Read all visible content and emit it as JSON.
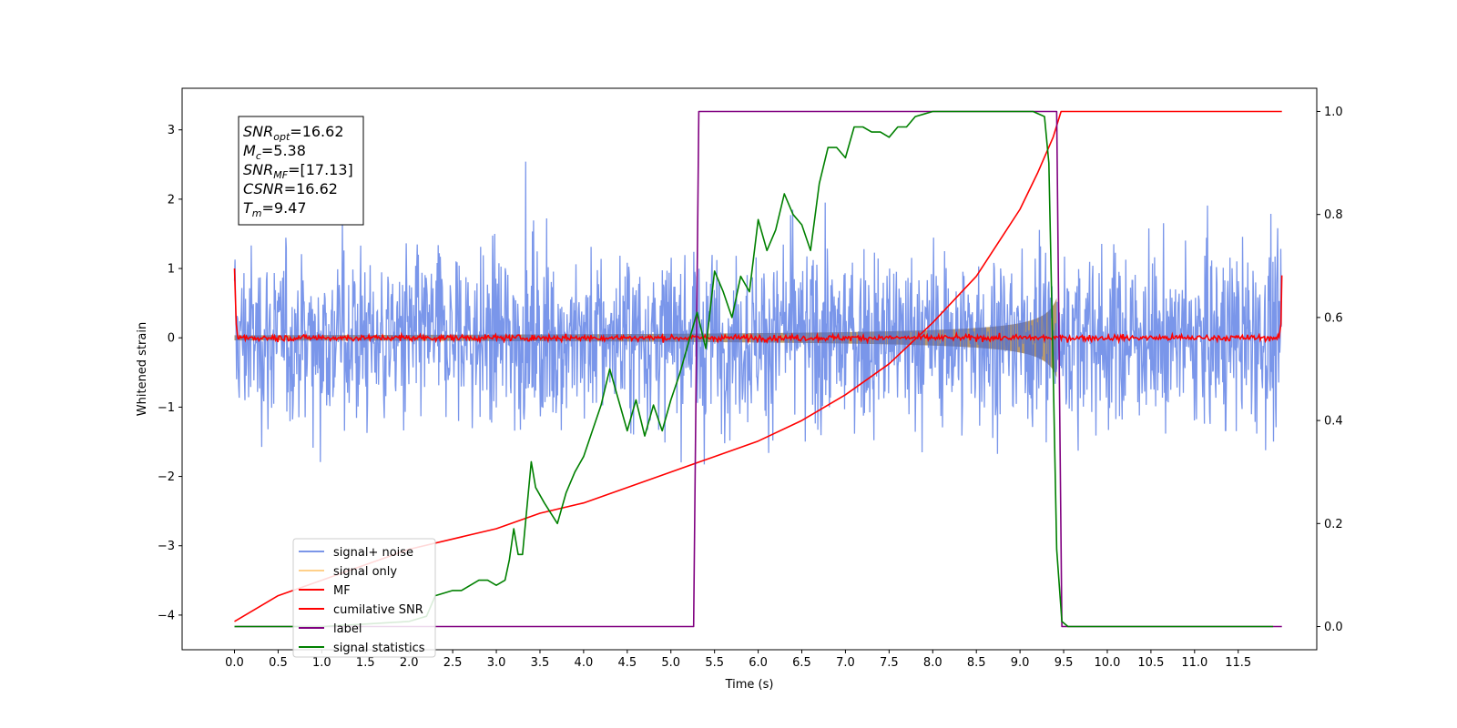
{
  "chart_data": {
    "type": "line",
    "xlabel": "Time (s)",
    "ylabel": "Whitened strain",
    "xlim": [
      -0.6,
      12.4
    ],
    "ylim": [
      -4.5,
      3.6
    ],
    "y2lim": [
      -0.045,
      1.045
    ],
    "x_ticks": [
      "0.0",
      "0.5",
      "1.0",
      "1.5",
      "2.0",
      "2.5",
      "3.0",
      "3.5",
      "4.0",
      "4.5",
      "5.0",
      "5.5",
      "6.0",
      "6.5",
      "7.0",
      "7.5",
      "8.0",
      "8.5",
      "9.0",
      "9.5",
      "10.0",
      "10.5",
      "11.0",
      "11.5"
    ],
    "y_ticks": [
      "3",
      "2",
      "1",
      "0",
      "−1",
      "−2",
      "−3",
      "−4"
    ],
    "y2_ticks": [
      "1.0",
      "0.8",
      "0.6",
      "0.4",
      "0.2",
      "0.0"
    ],
    "grid": false,
    "legend_position": "lower-left",
    "annotation": {
      "lines": [
        {
          "sym": "SNR",
          "sub": "opt",
          "val": "=16.62"
        },
        {
          "sym": "M",
          "sub": "c",
          "val": "=5.38"
        },
        {
          "sym": "SNR",
          "sub": "MF",
          "val": "=[17.13]"
        },
        {
          "sym": "CSNR",
          "sub": "",
          "val": "=16.62"
        },
        {
          "sym": "T",
          "sub": "m",
          "val": "=9.47"
        }
      ]
    },
    "series": [
      {
        "name": "signal+ noise",
        "color": "#4169e1",
        "axis": "left",
        "description": "whitened noise, roughly ±1.5 with excursions to about ±3.3, from 0 to 12 s"
      },
      {
        "name": "signal only",
        "color": "#ffa500",
        "axis": "left",
        "description": "chirp with growing amplitude, about ±0.05 near 0 s up to ±0.75 at 9.4 s, then 0"
      },
      {
        "name": "MF",
        "color": "#ff0000",
        "axis": "left",
        "description": "matched filter output, about 0 ± 0.1, near 1 at both edges"
      },
      {
        "name": "cumilative SNR",
        "color": "#ff0000",
        "axis": "right",
        "x": [
          0.0,
          0.5,
          1.0,
          1.5,
          2.0,
          2.5,
          3.0,
          3.5,
          4.0,
          4.5,
          5.0,
          5.5,
          6.0,
          6.5,
          7.0,
          7.5,
          8.0,
          8.5,
          9.0,
          9.2,
          9.38,
          9.47,
          12.0
        ],
        "y": [
          0.01,
          0.06,
          0.09,
          0.12,
          0.15,
          0.17,
          0.19,
          0.22,
          0.24,
          0.27,
          0.3,
          0.33,
          0.36,
          0.4,
          0.45,
          0.51,
          0.59,
          0.68,
          0.81,
          0.88,
          0.95,
          1.0,
          1.0
        ]
      },
      {
        "name": "label",
        "color": "#800080",
        "axis": "right",
        "x": [
          0.0,
          5.26,
          5.32,
          9.42,
          9.48,
          12.0
        ],
        "y": [
          0.0,
          0.0,
          1.0,
          1.0,
          0.0,
          0.0
        ]
      },
      {
        "name": "signal statistics",
        "color": "#008000",
        "axis": "right",
        "x": [
          0.0,
          1.0,
          2.0,
          2.2,
          2.3,
          2.5,
          2.6,
          2.8,
          2.9,
          3.0,
          3.1,
          3.15,
          3.2,
          3.25,
          3.3,
          3.4,
          3.45,
          3.55,
          3.7,
          3.8,
          3.9,
          4.0,
          4.1,
          4.2,
          4.3,
          4.4,
          4.5,
          4.6,
          4.7,
          4.8,
          4.9,
          5.0,
          5.1,
          5.2,
          5.3,
          5.4,
          5.5,
          5.6,
          5.7,
          5.8,
          5.9,
          6.0,
          6.1,
          6.2,
          6.3,
          6.4,
          6.5,
          6.6,
          6.7,
          6.8,
          6.9,
          7.0,
          7.1,
          7.2,
          7.3,
          7.4,
          7.5,
          7.6,
          7.7,
          7.8,
          8.0,
          8.2,
          8.6,
          8.8,
          9.0,
          9.15,
          9.28,
          9.33,
          9.38,
          9.42,
          9.48,
          9.55,
          9.7,
          11.9
        ],
        "y": [
          0.0,
          0.0,
          0.01,
          0.02,
          0.06,
          0.07,
          0.07,
          0.09,
          0.09,
          0.08,
          0.09,
          0.13,
          0.19,
          0.14,
          0.14,
          0.32,
          0.27,
          0.24,
          0.2,
          0.26,
          0.3,
          0.33,
          0.38,
          0.43,
          0.5,
          0.44,
          0.38,
          0.44,
          0.37,
          0.43,
          0.38,
          0.44,
          0.49,
          0.55,
          0.61,
          0.54,
          0.69,
          0.65,
          0.6,
          0.68,
          0.65,
          0.79,
          0.73,
          0.77,
          0.84,
          0.8,
          0.78,
          0.73,
          0.86,
          0.93,
          0.93,
          0.91,
          0.97,
          0.97,
          0.96,
          0.96,
          0.95,
          0.97,
          0.97,
          0.99,
          1.0,
          1.0,
          1.0,
          1.0,
          1.0,
          1.0,
          0.99,
          0.9,
          0.5,
          0.15,
          0.01,
          0.0,
          0.0,
          0.0
        ]
      }
    ]
  }
}
